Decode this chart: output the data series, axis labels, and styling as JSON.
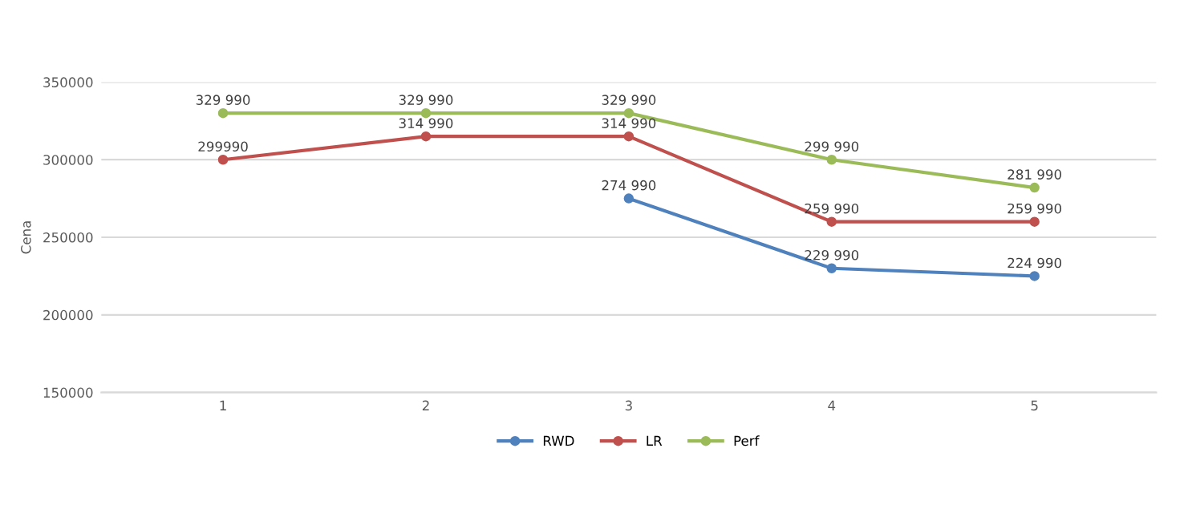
{
  "chart_data": {
    "type": "line",
    "ylabel": "Cena",
    "categories": [
      "1",
      "2",
      "3",
      "4",
      "5"
    ],
    "series": [
      {
        "name": "RWD",
        "color": "#4f81bd",
        "values": [
          null,
          null,
          274990,
          229990,
          224990
        ],
        "value_labels": [
          null,
          null,
          "274 990",
          "229 990",
          "224 990"
        ]
      },
      {
        "name": "LR",
        "color": "#c0504d",
        "values": [
          299990,
          314990,
          314990,
          259990,
          259990
        ],
        "value_labels": [
          "299990",
          "314 990",
          "314 990",
          "259 990",
          "259 990"
        ]
      },
      {
        "name": "Perf",
        "color": "#9bbb59",
        "values": [
          329990,
          329990,
          329990,
          299990,
          281990
        ],
        "value_labels": [
          "329 990",
          "329 990",
          "329 990",
          "299 990",
          "281 990"
        ]
      }
    ],
    "ylim": [
      150000,
      350000
    ],
    "yticks": [
      150000,
      200000,
      250000,
      300000,
      350000
    ],
    "grid": "y",
    "legend": "bottom",
    "marker": "circle",
    "line_style": "solid"
  }
}
